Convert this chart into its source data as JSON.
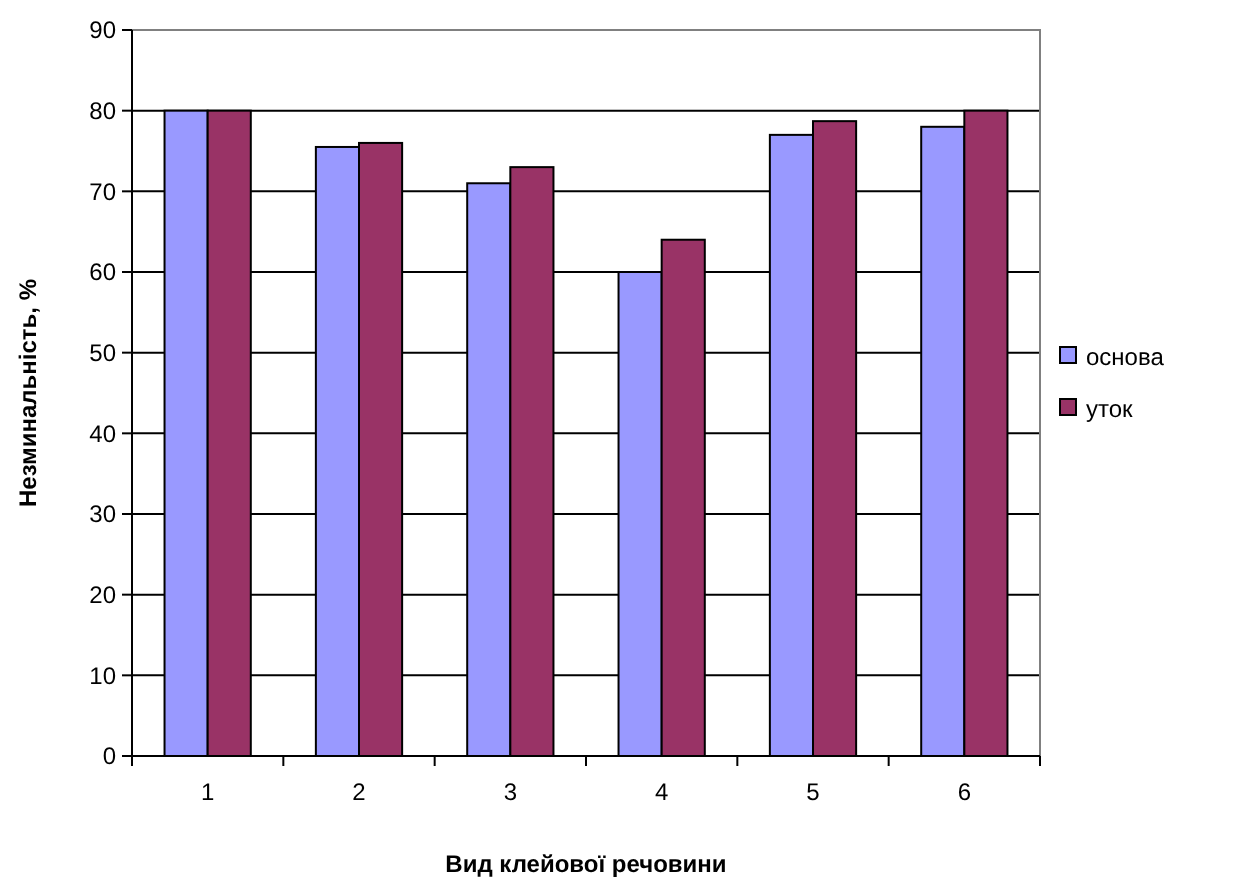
{
  "chart_data": {
    "type": "bar",
    "xlabel": "Вид клейової речовини",
    "ylabel": "Незминальність, %",
    "categories": [
      "1",
      "2",
      "3",
      "4",
      "5",
      "6"
    ],
    "series": [
      {
        "name": "основа",
        "color": "#9999ff",
        "values": [
          80,
          75.5,
          71,
          60,
          77,
          78
        ]
      },
      {
        "name": "уток",
        "color": "#993366",
        "values": [
          80,
          76,
          73,
          64,
          78.7,
          80
        ]
      }
    ],
    "ylim": [
      0,
      90
    ],
    "yticks": [
      0,
      10,
      20,
      30,
      40,
      50,
      60,
      70,
      80,
      90
    ],
    "grid": "y",
    "legend": "right"
  }
}
